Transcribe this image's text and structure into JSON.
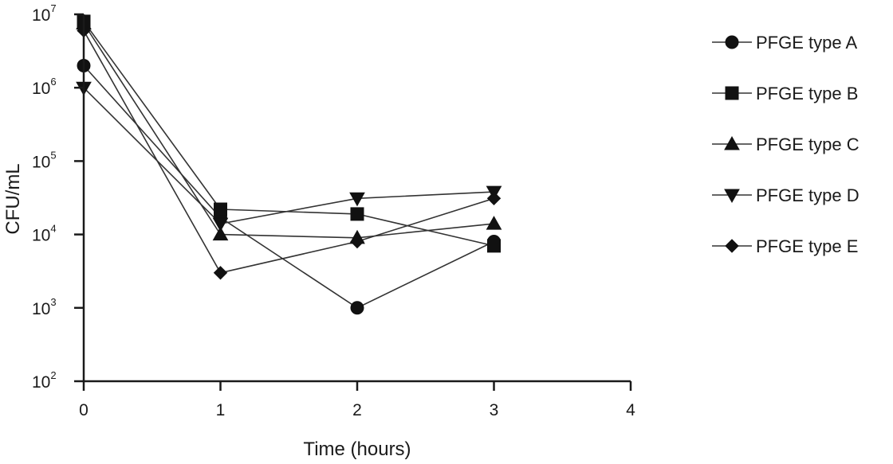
{
  "chart_data": {
    "type": "line",
    "xlabel": "Time (hours)",
    "ylabel": "CFU/mL",
    "xlim": [
      0,
      4
    ],
    "ylim": [
      100,
      10000000
    ],
    "yscale": "log",
    "x_ticks": [
      "0",
      "1",
      "2",
      "3",
      "4"
    ],
    "y_ticks": [
      {
        "base": "10",
        "exp": "2",
        "value": 100
      },
      {
        "base": "10",
        "exp": "3",
        "value": 1000
      },
      {
        "base": "10",
        "exp": "4",
        "value": 10000
      },
      {
        "base": "10",
        "exp": "5",
        "value": 100000
      },
      {
        "base": "10",
        "exp": "6",
        "value": 1000000
      },
      {
        "base": "10",
        "exp": "7",
        "value": 10000000
      }
    ],
    "legend_position": "right",
    "x": [
      0,
      1,
      2,
      3
    ],
    "series": [
      {
        "name": "PFGE type A",
        "marker": "circle",
        "values": [
          2000000,
          17000,
          1000,
          8000
        ]
      },
      {
        "name": "PFGE type B",
        "marker": "square",
        "values": [
          8000000,
          22000,
          19000,
          7000
        ]
      },
      {
        "name": "PFGE type C",
        "marker": "triangle-up",
        "values": [
          7500000,
          10000,
          9000,
          14000
        ]
      },
      {
        "name": "PFGE type D",
        "marker": "triangle-down",
        "values": [
          1000000,
          14000,
          31000,
          38000
        ]
      },
      {
        "name": "PFGE type E",
        "marker": "diamond",
        "values": [
          6000000,
          3000,
          8000,
          31000
        ]
      }
    ]
  }
}
